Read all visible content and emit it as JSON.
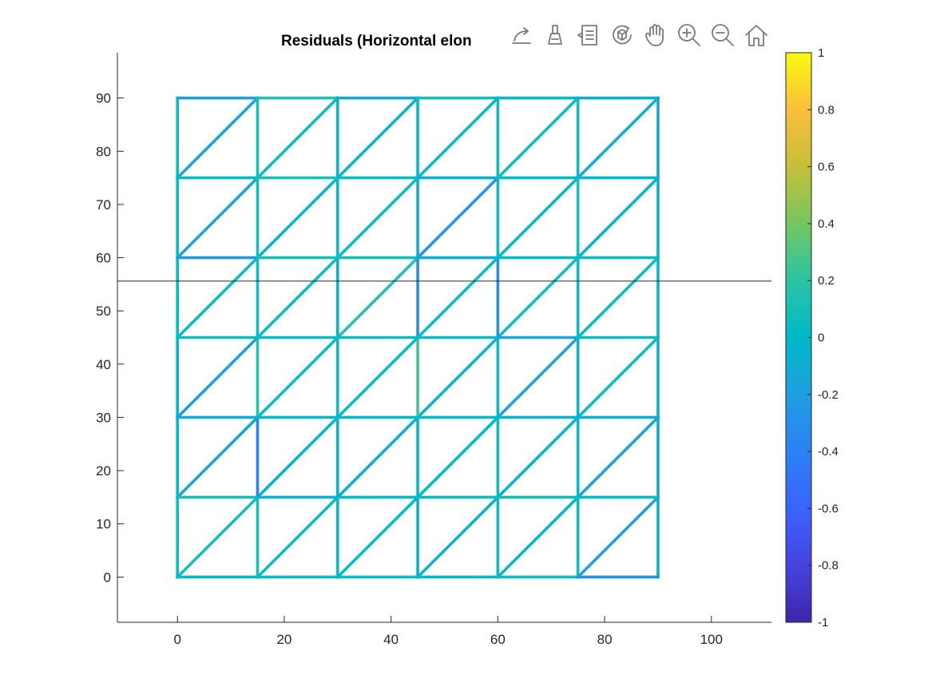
{
  "chart_data": {
    "type": "mesh",
    "title": "Residuals (Horizontal elon",
    "xlim": [
      -11.25,
      111.25
    ],
    "ylim": [
      -8.5,
      98.5
    ],
    "x_ticks": [
      0,
      20,
      40,
      60,
      80,
      100
    ],
    "y_ticks": [
      0,
      10,
      20,
      30,
      40,
      50,
      60,
      70,
      80,
      90
    ],
    "grid": false,
    "mesh": {
      "x_nodes": [
        0,
        15,
        30,
        45,
        60,
        75,
        90
      ],
      "y_nodes": [
        0,
        15,
        30,
        45,
        60,
        75,
        90
      ],
      "horizontal_residuals": [
        [
          0.02,
          0.03,
          0.05,
          0.02,
          0.08,
          -0.3
        ],
        [
          0.1,
          -0.05,
          0.02,
          0.05,
          0.08,
          0.02
        ],
        [
          -0.1,
          0.02,
          0.0,
          0.02,
          -0.03,
          -0.05
        ],
        [
          0.05,
          0.02,
          0.03,
          0.02,
          -0.15,
          0.03
        ],
        [
          -0.25,
          0.1,
          0.1,
          -0.1,
          0.03,
          0.05
        ],
        [
          0.03,
          0.12,
          0.03,
          -0.08,
          0.02,
          -0.02
        ],
        [
          -0.2,
          0.15,
          -0.15,
          0.1,
          0.02,
          -0.1
        ]
      ],
      "vertical_residuals": [
        [
          0.05,
          -0.02,
          -0.05,
          0.02,
          0.03,
          0.05
        ],
        [
          0.1,
          -0.4,
          0.15,
          0.05,
          0.08,
          0.1
        ],
        [
          0.02,
          -0.05,
          0.05,
          -0.02,
          0.03,
          0.02
        ],
        [
          -0.05,
          -0.02,
          0.25,
          -0.3,
          -0.1,
          -0.02
        ],
        [
          0.03,
          0.05,
          0.02,
          -0.3,
          0.02,
          0.05
        ],
        [
          0.05,
          0.02,
          -0.1,
          0.02,
          0.1,
          0.05
        ],
        [
          -0.1,
          -0.15,
          -0.1,
          -0.05,
          -0.1,
          -0.15
        ]
      ],
      "diagonal_residuals": [
        [
          0.1,
          0.05,
          0.02,
          -0.05,
          -0.03,
          -0.2
        ],
        [
          -0.15,
          -0.05,
          -0.1,
          0.02,
          -0.05,
          -0.15
        ],
        [
          -0.2,
          0.05,
          0.03,
          -0.05,
          -0.15,
          0.05
        ],
        [
          0.05,
          0.05,
          0.15,
          0.03,
          0.08,
          0.05
        ],
        [
          -0.15,
          -0.05,
          0.05,
          -0.25,
          0.02,
          -0.05
        ],
        [
          -0.15,
          0.05,
          -0.05,
          0.02,
          0.05,
          -0.1
        ]
      ]
    },
    "reference_line_y": 55.6,
    "colorbar": {
      "limits": [
        -1,
        1
      ],
      "ticks": [
        1,
        0.8,
        0.6,
        0.4,
        0.2,
        0,
        -0.2,
        -0.4,
        -0.6,
        -0.8,
        -1
      ],
      "tick_labels": [
        "1",
        "0.8",
        "0.6",
        "0.4",
        "0.2",
        "0",
        "-0.2",
        "-0.4",
        "-0.6",
        "-0.8",
        "-1"
      ],
      "colormap": "parula"
    }
  },
  "colors": {
    "reference_line": "#262626",
    "axis": "#262626",
    "toolbar_icon": "#7a7a7a"
  },
  "toolbar": {
    "icons": [
      "export-icon",
      "brush-icon",
      "datatip-icon",
      "rotate-3d-icon",
      "pan-hand-icon",
      "zoom-in-icon",
      "zoom-out-icon",
      "home-icon"
    ]
  }
}
